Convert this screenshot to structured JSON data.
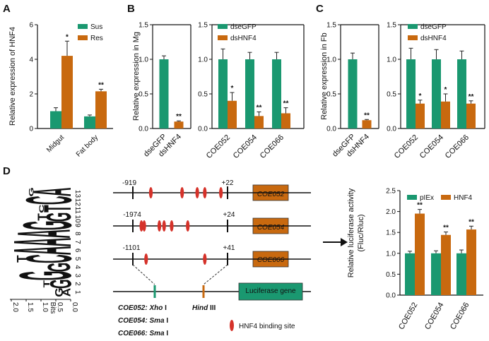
{
  "colors": {
    "green": "#1a9870",
    "orange": "#c8690f",
    "red": "#d5322a",
    "dark": "#111111",
    "yellow": "#f2b21c",
    "blue": "#2b7fc0"
  },
  "panels": {
    "a": "A",
    "b": "B",
    "c": "C",
    "d": "D"
  },
  "chart_data": [
    {
      "id": "A",
      "type": "bar",
      "ylabel": "Relative expression of HNF4",
      "ylim": [
        0,
        6
      ],
      "yticks": [
        "0",
        "2",
        "4",
        "6"
      ],
      "categories": [
        "Midgut",
        "Fat body"
      ],
      "series": [
        {
          "name": "Sus",
          "color": "green",
          "values": [
            1.0,
            0.7
          ],
          "errors": [
            0.2,
            0.08
          ]
        },
        {
          "name": "Res",
          "color": "orange",
          "values": [
            4.2,
            2.15
          ],
          "errors": [
            0.85,
            0.12
          ]
        }
      ],
      "annotations": [
        "*",
        "**"
      ]
    },
    {
      "id": "B",
      "type": "bar",
      "ylabel": "Relative expression in Mg",
      "ylim": [
        0,
        1.5
      ],
      "yticks": [
        "0.0",
        "0.5",
        "1.0",
        "1.5"
      ],
      "left_categories": [
        "dseGFP",
        "dsHNF4"
      ],
      "left_values": [
        1.0,
        0.1
      ],
      "left_errors": [
        0.05,
        0.01
      ],
      "left_annotations": [
        "",
        "**"
      ],
      "categories": [
        "COE052",
        "COE054",
        "COE066"
      ],
      "series": [
        {
          "name": "dseGFP",
          "color": "green",
          "values": [
            1.0,
            1.0,
            1.0
          ],
          "errors": [
            0.15,
            0.1,
            0.1
          ]
        },
        {
          "name": "dsHNF4",
          "color": "orange",
          "values": [
            0.4,
            0.18,
            0.22
          ],
          "errors": [
            0.12,
            0.06,
            0.08
          ]
        }
      ],
      "annotations": [
        "*",
        "**",
        "**"
      ]
    },
    {
      "id": "C",
      "type": "bar",
      "ylabel": "Relative expression in Fb",
      "ylim": [
        0,
        1.5
      ],
      "yticks": [
        "0.0",
        "0.5",
        "1.0",
        "1.5"
      ],
      "left_categories": [
        "dseGFP",
        "dsHNF4"
      ],
      "left_values": [
        1.0,
        0.12
      ],
      "left_errors": [
        0.09,
        0.01
      ],
      "left_annotations": [
        "",
        "**"
      ],
      "categories": [
        "COE052",
        "COE054",
        "COE066"
      ],
      "series": [
        {
          "name": "dseGFP",
          "color": "green",
          "values": [
            1.0,
            1.0,
            1.0
          ],
          "errors": [
            0.16,
            0.14,
            0.12
          ]
        },
        {
          "name": "dsHNF4",
          "color": "orange",
          "values": [
            0.36,
            0.39,
            0.36
          ],
          "errors": [
            0.05,
            0.11,
            0.04
          ]
        }
      ],
      "annotations": [
        "*",
        "*",
        "**"
      ]
    },
    {
      "id": "D",
      "type": "bar",
      "ylabel_lines": [
        "Relative luciferase activity",
        "(Fluc/Rluc)"
      ],
      "ylim": [
        0,
        2.5
      ],
      "yticks": [
        "0.0",
        "0.5",
        "1.0",
        "1.5",
        "2.0",
        "2.5"
      ],
      "categories": [
        "COE052",
        "COE054",
        "COE066"
      ],
      "series": [
        {
          "name": "pIEx",
          "color": "green",
          "values": [
            1.0,
            1.0,
            1.0
          ],
          "errors": [
            0.05,
            0.06,
            0.08
          ]
        },
        {
          "name": "HNF4",
          "color": "orange",
          "values": [
            1.95,
            1.44,
            1.57
          ],
          "errors": [
            0.1,
            0.07,
            0.08
          ]
        }
      ],
      "annotations": [
        "**",
        "**",
        "**"
      ]
    }
  ],
  "motif": {
    "yaxis_label": "Bits",
    "ylim": [
      0,
      2.0
    ],
    "yticks": [
      "0.0",
      "0.5",
      "1.0",
      "1.5",
      "2.0"
    ],
    "positions": [
      "1",
      "2",
      "3",
      "4",
      "5",
      "6",
      "7",
      "8",
      "9",
      "10",
      "11",
      "12",
      "13"
    ],
    "columns": [
      [
        {
          "l": "A",
          "h": 0.25
        },
        {
          "l": "G",
          "h": 0.25
        }
      ],
      [
        {
          "l": "G",
          "h": 0.7
        },
        {
          "l": "T",
          "h": 0.2
        }
      ],
      [
        {
          "l": "G",
          "h": 1.7
        }
      ],
      [
        {
          "l": "G",
          "h": 0.75
        }
      ],
      [
        {
          "l": "C",
          "h": 1.5
        },
        {
          "l": "T",
          "h": 0.3
        }
      ],
      [
        {
          "l": "A",
          "h": 1.9
        }
      ],
      [
        {
          "l": "A",
          "h": 1.9
        }
      ],
      [
        {
          "l": "A",
          "h": 1.75
        }
      ],
      [
        {
          "l": "G",
          "h": 1.6
        }
      ],
      [
        {
          "l": "G",
          "h": 0.8
        },
        {
          "l": "T",
          "h": 0.3
        }
      ],
      [
        {
          "l": "T",
          "h": 0.9
        },
        {
          "l": "C",
          "h": 0.15
        }
      ],
      [
        {
          "l": "C",
          "h": 1.5
        }
      ],
      [
        {
          "l": "A",
          "h": 1.25
        },
        {
          "l": "G",
          "h": 0.15
        }
      ]
    ]
  },
  "promoters": [
    {
      "gene": "COE052",
      "start": "-919",
      "end": "+22",
      "sites": [
        0.19,
        0.52,
        0.68,
        0.76,
        0.93
      ]
    },
    {
      "gene": "COE054",
      "start": "-1974",
      "end": "+24",
      "sites": [
        0.09,
        0.12,
        0.28,
        0.33,
        0.41,
        0.58
      ]
    },
    {
      "gene": "COE066",
      "start": "-1101",
      "end": "+41",
      "sites": [
        0.14,
        0.76
      ]
    }
  ],
  "construct": {
    "reporter": "Luciferase gene",
    "site_left_lines": [
      {
        "gene": "COE052",
        "enzyme": "Xho",
        "suffix": " I"
      },
      {
        "gene": "COE054",
        "enzyme": "Sma",
        "suffix": " I"
      },
      {
        "gene": "COE066",
        "enzyme": "Sma",
        "suffix": " I"
      }
    ],
    "site_right": {
      "enzyme": "Hind",
      "suffix": " III"
    },
    "legend": "HNF4 binding site"
  }
}
